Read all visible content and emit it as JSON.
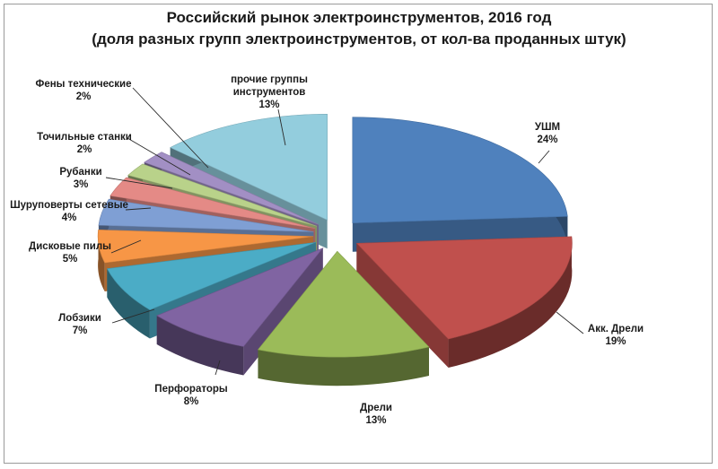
{
  "chart_data": {
    "type": "pie",
    "title": "Российский рынок электроинструментов, 2016 год",
    "subtitle": "(доля разных групп электроинструментов, от кол-ва проданных штук)",
    "slices": [
      {
        "label": "УШМ",
        "value": 24,
        "value_label": "24%",
        "color": "#4f81bd"
      },
      {
        "label": "Акк. Дрели",
        "value": 19,
        "value_label": "19%",
        "color": "#c0504d"
      },
      {
        "label": "Дрели",
        "value": 13,
        "value_label": "13%",
        "color": "#9bbb59"
      },
      {
        "label": "Перфораторы",
        "value": 8,
        "value_label": "8%",
        "color": "#8064a2"
      },
      {
        "label": "Лобзики",
        "value": 7,
        "value_label": "7%",
        "color": "#4bacc6"
      },
      {
        "label": "Дисковые пилы",
        "value": 5,
        "value_label": "5%",
        "color": "#f79646"
      },
      {
        "label": "Шуруповерты сетевые",
        "value": 4,
        "value_label": "4%",
        "color": "#7f9fd4"
      },
      {
        "label": "Рубанки",
        "value": 3,
        "value_label": "3%",
        "color": "#e48a86"
      },
      {
        "label": "Точильные станки",
        "value": 2,
        "value_label": "2%",
        "color": "#b9d28a"
      },
      {
        "label": "Фены технические",
        "value": 2,
        "value_label": "2%",
        "color": "#a28fc4"
      },
      {
        "label": "прочие группы инструментов",
        "value": 13,
        "value_label": "13%",
        "color": "#93cddd"
      }
    ],
    "style": "3d-exploded"
  }
}
